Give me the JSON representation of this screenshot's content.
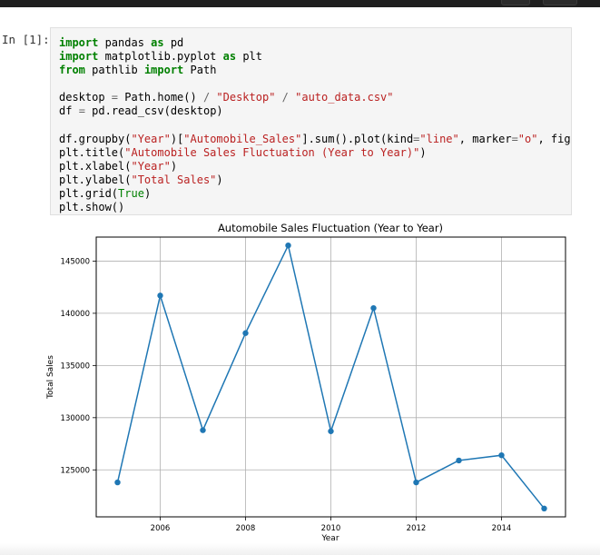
{
  "prompt": {
    "label": "In [1]:"
  },
  "code": {
    "line1": {
      "k1": "import",
      "t1": " pandas ",
      "k2": "as",
      "t2": " pd"
    },
    "line2": {
      "k1": "import",
      "t1": " matplotlib.pyplot ",
      "k2": "as",
      "t2": " plt"
    },
    "line3": {
      "k1": "from",
      "t1": " pathlib ",
      "k2": "import",
      "t2": " Path"
    },
    "line4": {
      "a": "desktop ",
      "eq": "=",
      "b": " Path.home() ",
      "slash1": "/",
      "s1": " \"Desktop\" ",
      "slash2": "/",
      "s2": " \"auto_data.csv\""
    },
    "line5": {
      "a": "df ",
      "eq": "=",
      "b": " pd.read_csv(desktop)"
    },
    "line6": {
      "a": "df.groupby(",
      "s1": "\"Year\"",
      "b": ")[",
      "s2": "\"Automobile_Sales\"",
      "c": "].sum().plot(kind",
      "eq1": "=",
      "s3": "\"line\"",
      "d": ", marker",
      "eq2": "=",
      "s4": "\"o\"",
      "e": ", figsize="
    },
    "line7": {
      "a": "plt.title(",
      "s": "\"Automobile Sales Fluctuation (Year to Year)\"",
      "b": ")"
    },
    "line8": {
      "a": "plt.xlabel(",
      "s": "\"Year\"",
      "b": ")"
    },
    "line9": {
      "a": "plt.ylabel(",
      "s": "\"Total Sales\"",
      "b": ")"
    },
    "line10": {
      "a": "plt.grid(",
      "k": "True",
      "b": ")"
    },
    "line11": {
      "a": "plt.show()"
    }
  },
  "chart_data": {
    "type": "line",
    "title": "Automobile Sales Fluctuation (Year to Year)",
    "xlabel": "Year",
    "ylabel": "Total Sales",
    "x": [
      2005,
      2006,
      2007,
      2008,
      2009,
      2010,
      2011,
      2012,
      2013,
      2014,
      2015
    ],
    "y": [
      123800,
      141700,
      128800,
      138100,
      146500,
      128700,
      140500,
      123800,
      125900,
      126400,
      121300
    ],
    "xlim": [
      2004.5,
      2015.5
    ],
    "ylim": [
      120500,
      147300
    ],
    "xticks": [
      2006,
      2008,
      2010,
      2012,
      2014
    ],
    "yticks": [
      125000,
      130000,
      135000,
      140000,
      145000
    ],
    "grid": true,
    "line_color": "#1f77b4",
    "marker": "o"
  }
}
